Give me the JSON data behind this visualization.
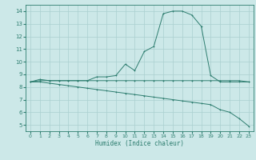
{
  "xlabel": "Humidex (Indice chaleur)",
  "background_color": "#cce8e8",
  "line_color": "#2d7d6f",
  "grid_color": "#aacfcf",
  "xlim": [
    -0.5,
    23.5
  ],
  "ylim": [
    4.5,
    14.5
  ],
  "xticks": [
    0,
    1,
    2,
    3,
    4,
    5,
    6,
    7,
    8,
    9,
    10,
    11,
    12,
    13,
    14,
    15,
    16,
    17,
    18,
    19,
    20,
    21,
    22,
    23
  ],
  "yticks": [
    5,
    6,
    7,
    8,
    9,
    10,
    11,
    12,
    13,
    14
  ],
  "series": [
    {
      "x": [
        0,
        1,
        2,
        3,
        4,
        5,
        6,
        7,
        8,
        9,
        10,
        11,
        12,
        13,
        14,
        15,
        16,
        17,
        18,
        19,
        20,
        21,
        22,
        23
      ],
      "y": [
        8.4,
        8.6,
        8.5,
        8.5,
        8.5,
        8.5,
        8.5,
        8.8,
        8.8,
        8.9,
        9.8,
        9.3,
        10.8,
        11.2,
        13.8,
        14.0,
        14.0,
        13.7,
        12.8,
        8.9,
        8.4,
        8.4,
        8.4,
        8.4
      ]
    },
    {
      "x": [
        0,
        1,
        2,
        3,
        4,
        5,
        6,
        7,
        8,
        9,
        10,
        11,
        12,
        13,
        14,
        15,
        16,
        17,
        18,
        19,
        20,
        21,
        22,
        23
      ],
      "y": [
        8.4,
        8.5,
        8.5,
        8.5,
        8.5,
        8.5,
        8.5,
        8.5,
        8.5,
        8.5,
        8.5,
        8.5,
        8.5,
        8.5,
        8.5,
        8.5,
        8.5,
        8.5,
        8.5,
        8.5,
        8.5,
        8.5,
        8.5,
        8.4
      ]
    },
    {
      "x": [
        0,
        1,
        2,
        3,
        4,
        5,
        6,
        7,
        8,
        9,
        10,
        11,
        12,
        13,
        14,
        15,
        16,
        17,
        18,
        19,
        20,
        21,
        22,
        23
      ],
      "y": [
        8.4,
        8.4,
        8.3,
        8.2,
        8.1,
        8.0,
        7.9,
        7.8,
        7.7,
        7.6,
        7.5,
        7.4,
        7.3,
        7.2,
        7.1,
        7.0,
        6.9,
        6.8,
        6.7,
        6.6,
        6.2,
        6.0,
        5.5,
        4.9
      ]
    }
  ],
  "marker": "+"
}
